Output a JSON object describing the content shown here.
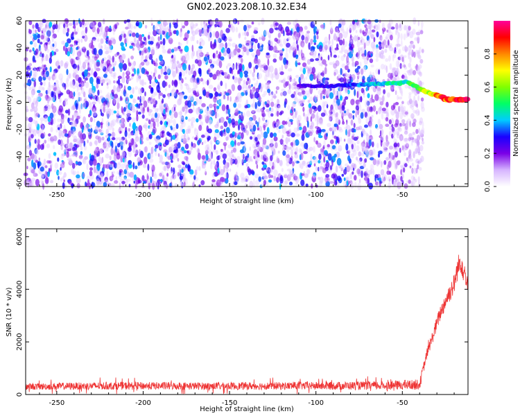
{
  "title": "GN02.2023.208.10.32.E34",
  "chart_data": [
    {
      "type": "heatmap",
      "title": "GN02.2023.208.10.32.E34",
      "xlabel": "Height of straight line (km)",
      "ylabel": "Frequency (Hz)",
      "xlim": [
        -268,
        -12
      ],
      "ylim": [
        -62,
        60
      ],
      "xticks": [
        -250,
        -200,
        -150,
        -100,
        -50
      ],
      "yticks": [
        60,
        40,
        20,
        0,
        -20,
        -40,
        -60
      ],
      "noise_region_x": [
        -268,
        -40
      ],
      "signal_track": {
        "x": [
          -110,
          -90,
          -78,
          -70,
          -60,
          -52,
          -48,
          -44,
          -40,
          -36,
          -32,
          -28,
          -24,
          -20,
          -16,
          -12
        ],
        "y": [
          12,
          12,
          13,
          13,
          14,
          14,
          15,
          13,
          10,
          8,
          6,
          4,
          2,
          2,
          2,
          2
        ],
        "amplitude": [
          0.25,
          0.3,
          0.35,
          0.4,
          0.45,
          0.5,
          0.45,
          0.55,
          0.6,
          0.7,
          0.75,
          0.85,
          0.9,
          0.95,
          0.95,
          0.9
        ]
      },
      "colorbar": {
        "label": "Normalized spectral amplitude",
        "ticks": [
          0.0,
          0.2,
          0.4,
          0.6,
          0.8
        ],
        "range": [
          0,
          1
        ],
        "colors": [
          "#ffffff",
          "#d6b4ff",
          "#7a00e6",
          "#1a00ff",
          "#00ccff",
          "#00ff66",
          "#80ff00",
          "#ffff00",
          "#ff8800",
          "#ff0000",
          "#ff0099"
        ]
      },
      "grid": false,
      "legend": "none"
    },
    {
      "type": "line",
      "xlabel": "Height of straight line (km)",
      "ylabel": "SNR (10 * v/v)",
      "xlim": [
        -268,
        -12
      ],
      "ylim": [
        0,
        6300
      ],
      "xticks": [
        -250,
        -200,
        -150,
        -100,
        -50
      ],
      "yticks": [
        0,
        2000,
        4000,
        6000
      ],
      "color": "#ee3333",
      "series": [
        {
          "x": [
            -268,
            -220,
            -160,
            -100,
            -60,
            -40,
            -36,
            -32,
            -28,
            -24,
            -20,
            -18,
            -16,
            -14,
            -12
          ],
          "y": [
            300,
            330,
            320,
            330,
            340,
            380,
            1500,
            2300,
            3100,
            3700,
            4200,
            4800,
            5100,
            4600,
            4300
          ],
          "noise_amplitude": [
            250,
            300,
            280,
            300,
            330,
            400,
            400,
            500,
            600,
            700,
            800,
            900,
            1000,
            900,
            700
          ]
        }
      ],
      "grid": false,
      "legend": "none"
    }
  ]
}
